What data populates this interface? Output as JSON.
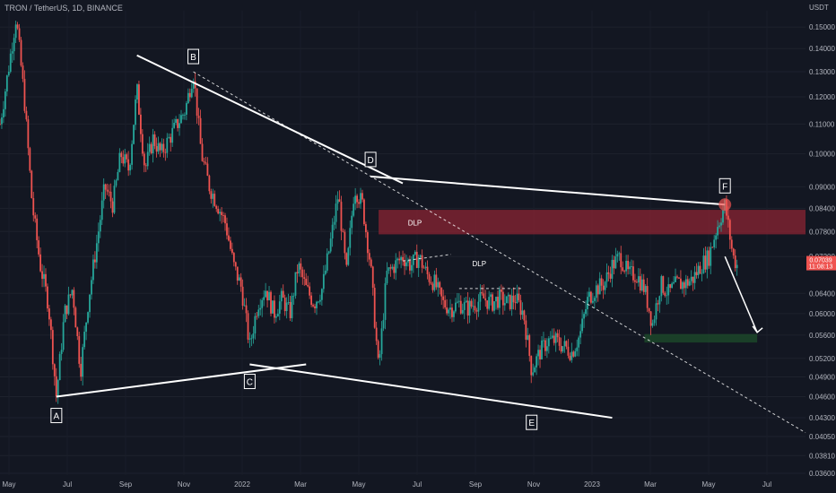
{
  "header": {
    "title": "TRON / TetherUS, 1D, BINANCE",
    "unit": "USDT"
  },
  "chart_data": {
    "type": "candlestick",
    "xlabel": "",
    "ylabel": "",
    "ylim": [
      0.0358,
      0.158
    ],
    "y_scale": "log",
    "y_ticks": [
      0.15,
      0.14,
      0.13,
      0.12,
      0.11,
      0.1,
      0.09,
      0.084,
      0.078,
      0.072,
      0.064,
      0.06,
      0.056,
      0.052,
      0.049,
      0.046,
      0.043,
      0.0405,
      0.0381,
      0.036
    ],
    "y_tick_labels": [
      "0.15000",
      "0.14000",
      "0.13000",
      "0.12000",
      "0.11000",
      "0.10000",
      "0.09000",
      "0.08400",
      "0.07800",
      "0.07200",
      "0.06400",
      "0.06000",
      "0.05600",
      "0.05200",
      "0.04900",
      "0.04600",
      "0.04300",
      "0.04050",
      "0.03810",
      "0.03600"
    ],
    "x_ticks": [
      "May",
      "Jul",
      "Sep",
      "Nov",
      "2022",
      "Mar",
      "May",
      "Jul",
      "Sep",
      "Nov",
      "2023",
      "Mar",
      "May",
      "Jul"
    ],
    "current_price": "0.07039",
    "countdown": "11:08:13",
    "price_path": [
      [
        0,
        0.11
      ],
      [
        0.01,
        0.13
      ],
      [
        0.02,
        0.155
      ],
      [
        0.03,
        0.12
      ],
      [
        0.04,
        0.085
      ],
      [
        0.05,
        0.07
      ],
      [
        0.06,
        0.062
      ],
      [
        0.07,
        0.046
      ],
      [
        0.08,
        0.06
      ],
      [
        0.09,
        0.065
      ],
      [
        0.1,
        0.05
      ],
      [
        0.11,
        0.063
      ],
      [
        0.12,
        0.075
      ],
      [
        0.13,
        0.09
      ],
      [
        0.14,
        0.085
      ],
      [
        0.15,
        0.1
      ],
      [
        0.16,
        0.095
      ],
      [
        0.17,
        0.123
      ],
      [
        0.18,
        0.095
      ],
      [
        0.19,
        0.105
      ],
      [
        0.2,
        0.1
      ],
      [
        0.21,
        0.105
      ],
      [
        0.22,
        0.11
      ],
      [
        0.23,
        0.115
      ],
      [
        0.24,
        0.13
      ],
      [
        0.25,
        0.1
      ],
      [
        0.26,
        0.09
      ],
      [
        0.27,
        0.085
      ],
      [
        0.28,
        0.08
      ],
      [
        0.29,
        0.07
      ],
      [
        0.3,
        0.065
      ],
      [
        0.31,
        0.054
      ],
      [
        0.32,
        0.062
      ],
      [
        0.33,
        0.065
      ],
      [
        0.34,
        0.06
      ],
      [
        0.35,
        0.063
      ],
      [
        0.36,
        0.06
      ],
      [
        0.37,
        0.07
      ],
      [
        0.38,
        0.065
      ],
      [
        0.39,
        0.062
      ],
      [
        0.4,
        0.065
      ],
      [
        0.41,
        0.075
      ],
      [
        0.42,
        0.088
      ],
      [
        0.43,
        0.068
      ],
      [
        0.44,
        0.09
      ],
      [
        0.45,
        0.085
      ],
      [
        0.46,
        0.07
      ],
      [
        0.47,
        0.05
      ],
      [
        0.48,
        0.068
      ],
      [
        0.49,
        0.07
      ],
      [
        0.5,
        0.072
      ],
      [
        0.51,
        0.07
      ],
      [
        0.52,
        0.072
      ],
      [
        0.53,
        0.068
      ],
      [
        0.54,
        0.066
      ],
      [
        0.55,
        0.062
      ],
      [
        0.56,
        0.061
      ],
      [
        0.57,
        0.062
      ],
      [
        0.58,
        0.061
      ],
      [
        0.59,
        0.062
      ],
      [
        0.6,
        0.063
      ],
      [
        0.61,
        0.062
      ],
      [
        0.62,
        0.063
      ],
      [
        0.63,
        0.062
      ],
      [
        0.64,
        0.063
      ],
      [
        0.65,
        0.06
      ],
      [
        0.66,
        0.05
      ],
      [
        0.67,
        0.053
      ],
      [
        0.68,
        0.055
      ],
      [
        0.69,
        0.055
      ],
      [
        0.7,
        0.054
      ],
      [
        0.71,
        0.053
      ],
      [
        0.72,
        0.056
      ],
      [
        0.73,
        0.063
      ],
      [
        0.74,
        0.065
      ],
      [
        0.75,
        0.066
      ],
      [
        0.76,
        0.07
      ],
      [
        0.77,
        0.072
      ],
      [
        0.78,
        0.068
      ],
      [
        0.79,
        0.068
      ],
      [
        0.8,
        0.065
      ],
      [
        0.81,
        0.058
      ],
      [
        0.82,
        0.066
      ],
      [
        0.83,
        0.064
      ],
      [
        0.84,
        0.066
      ],
      [
        0.85,
        0.066
      ],
      [
        0.86,
        0.067
      ],
      [
        0.87,
        0.07
      ],
      [
        0.88,
        0.072
      ],
      [
        0.89,
        0.079
      ],
      [
        0.9,
        0.085
      ],
      [
        0.91,
        0.072
      ],
      [
        0.915,
        0.07
      ]
    ],
    "pattern_points": [
      {
        "label": "A",
        "x": 0.07,
        "price": 0.046
      },
      {
        "label": "B",
        "x": 0.24,
        "price": 0.13
      },
      {
        "label": "C",
        "x": 0.31,
        "price": 0.051
      },
      {
        "label": "D",
        "x": 0.46,
        "price": 0.093
      },
      {
        "label": "E",
        "x": 0.66,
        "price": 0.045
      },
      {
        "label": "F",
        "x": 0.9,
        "price": 0.085
      }
    ],
    "zones": [
      {
        "label": "DLP",
        "from_x": 0.47,
        "to_x": 1.0,
        "low": 0.0773,
        "high": 0.0836,
        "color": "#8b2433"
      },
      {
        "label": "",
        "from_x": 0.8,
        "to_x": 0.94,
        "low": 0.0547,
        "high": 0.0562,
        "color": "#1e4d2b"
      }
    ],
    "annotations": [
      {
        "text": "DLP",
        "x": 0.515,
        "price": 0.0795
      },
      {
        "text": "DLP",
        "x": 0.595,
        "price": 0.0698
      }
    ]
  }
}
